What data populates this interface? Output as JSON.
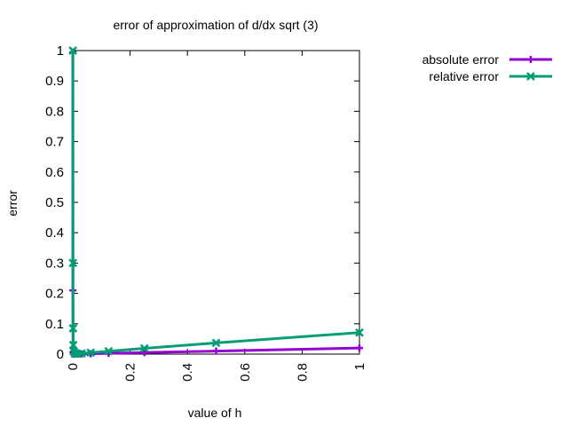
{
  "chart_data": {
    "type": "line",
    "title": "error of approximation of d/dx sqrt (3)",
    "xlabel": "value of h",
    "ylabel": "error",
    "xlim": [
      0,
      1
    ],
    "ylim": [
      0,
      1
    ],
    "xticks": [
      "0",
      "0.2",
      "0.4",
      "0.6",
      "0.8",
      "1"
    ],
    "yticks": [
      "0",
      "0.1",
      "0.2",
      "0.3",
      "0.4",
      "0.5",
      "0.6",
      "0.7",
      "0.8",
      "0.9",
      "1"
    ],
    "grid": false,
    "legend_position": "outside top-right",
    "series": [
      {
        "name": "absolute error",
        "color": "#9400d3",
        "marker": "plus",
        "x": [
          1,
          0.5,
          0.25,
          0.125,
          0.0625,
          0.03125,
          0.015625,
          0.0078125,
          0.00390625,
          0.001953125,
          0.0009765625,
          0.00048828125,
          0.000244140625
        ],
        "y": [
          0.02,
          0.01,
          0.005,
          0.0025,
          0.0012,
          0.0006,
          0.0003,
          0.0002,
          0.0003,
          0.0008,
          0.007,
          0.21,
          0.995
        ]
      },
      {
        "name": "relative error",
        "color": "#009e73",
        "marker": "cross",
        "x": [
          1,
          0.5,
          0.25,
          0.125,
          0.0625,
          0.03125,
          0.015625,
          0.0078125,
          0.00390625,
          0.001953125,
          0.0009765625,
          0.00048828125,
          0.000244140625
        ],
        "y": [
          0.071,
          0.037,
          0.019,
          0.0095,
          0.0048,
          0.0024,
          0.0012,
          0.001,
          0.008,
          0.03,
          0.085,
          0.3,
          1.0
        ]
      }
    ]
  }
}
